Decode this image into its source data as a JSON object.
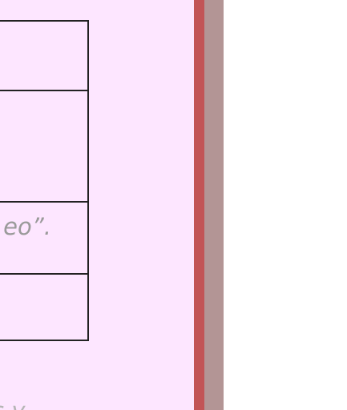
{
  "colors": {
    "panel_background": "#fde6ff",
    "border_red": "#c25456",
    "border_mauve": "#b39595",
    "table_line": "#222222",
    "muted_text": "#9a9a9a"
  },
  "content": {
    "visible_fragment": "eo”.",
    "bottom_fragment": "s y"
  }
}
